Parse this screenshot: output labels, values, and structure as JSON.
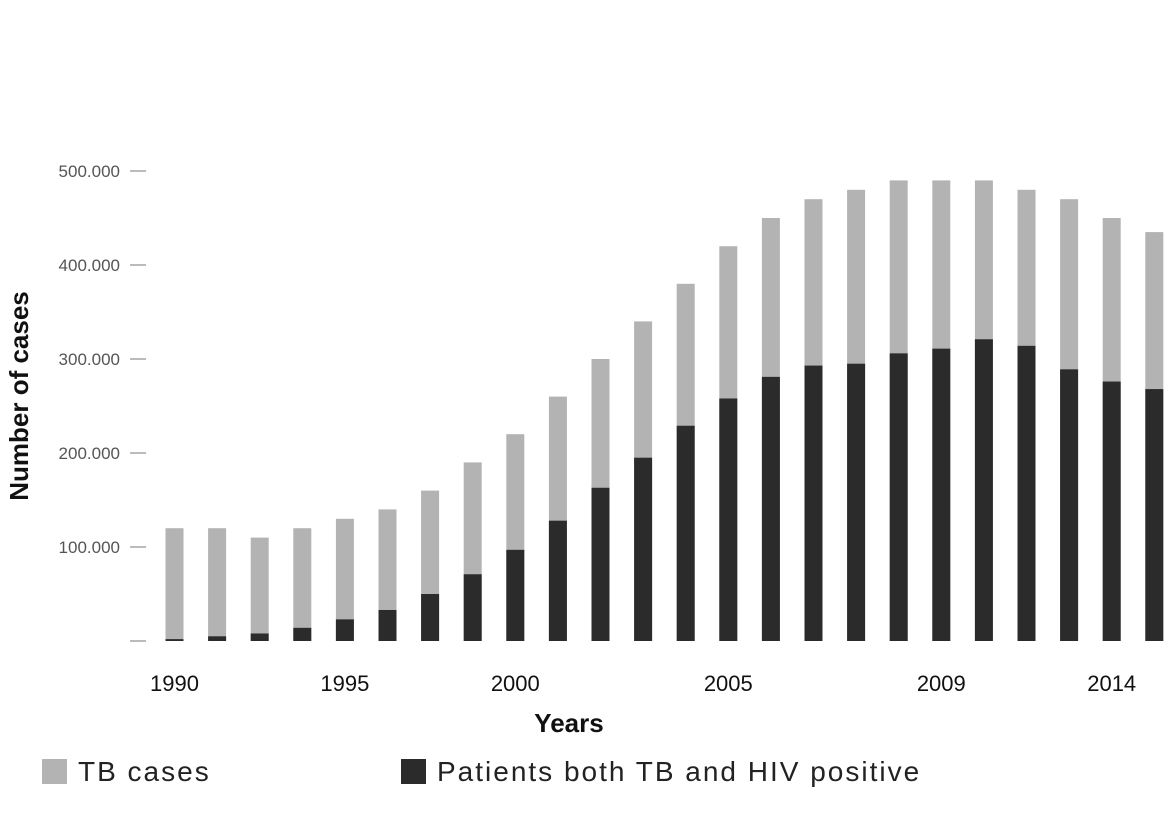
{
  "chart_data": {
    "type": "bar",
    "stacking": "overlay",
    "xlabel": "Years",
    "ylabel": "Number of cases",
    "ylim": [
      0,
      500000
    ],
    "y_ticks": [
      {
        "value": 0,
        "label": ""
      },
      {
        "value": 100000,
        "label": "100.000"
      },
      {
        "value": 200000,
        "label": "200.000"
      },
      {
        "value": 300000,
        "label": "300.000"
      },
      {
        "value": 400000,
        "label": "400.000"
      },
      {
        "value": 500000,
        "label": "500.000"
      }
    ],
    "categories": [
      1990,
      1991,
      1992,
      1993,
      1994,
      1995,
      1996,
      1997,
      1998,
      1999,
      2000,
      2001,
      2002,
      2003,
      2004,
      2005,
      2006,
      2007,
      2008,
      2009,
      2010,
      2011,
      2012,
      2013,
      2014
    ],
    "x_tick_labels": [
      {
        "category": 1990,
        "label": "1990"
      },
      {
        "category": 1994,
        "label": "1995"
      },
      {
        "category": 1998,
        "label": "2000"
      },
      {
        "category": 2003,
        "label": "2005"
      },
      {
        "category": 2008,
        "label": "2009"
      },
      {
        "category": 2012,
        "label": "2014"
      }
    ],
    "series": [
      {
        "name": "TB cases",
        "color": "#b3b3b3",
        "values": [
          120000,
          120000,
          110000,
          120000,
          130000,
          140000,
          160000,
          190000,
          220000,
          260000,
          300000,
          340000,
          380000,
          420000,
          450000,
          470000,
          480000,
          490000,
          490000,
          490000,
          480000,
          470000,
          450000,
          435000,
          0
        ]
      },
      {
        "name": "Patients both TB and HIV positive",
        "color": "#2b2b2b",
        "values": [
          2000,
          5000,
          8000,
          14000,
          23000,
          33000,
          50000,
          71000,
          97000,
          128000,
          163000,
          195000,
          229000,
          258000,
          281000,
          293000,
          295000,
          306000,
          311000,
          321000,
          314000,
          289000,
          276000,
          268000,
          0
        ]
      }
    ],
    "legend": "bottom-left"
  }
}
